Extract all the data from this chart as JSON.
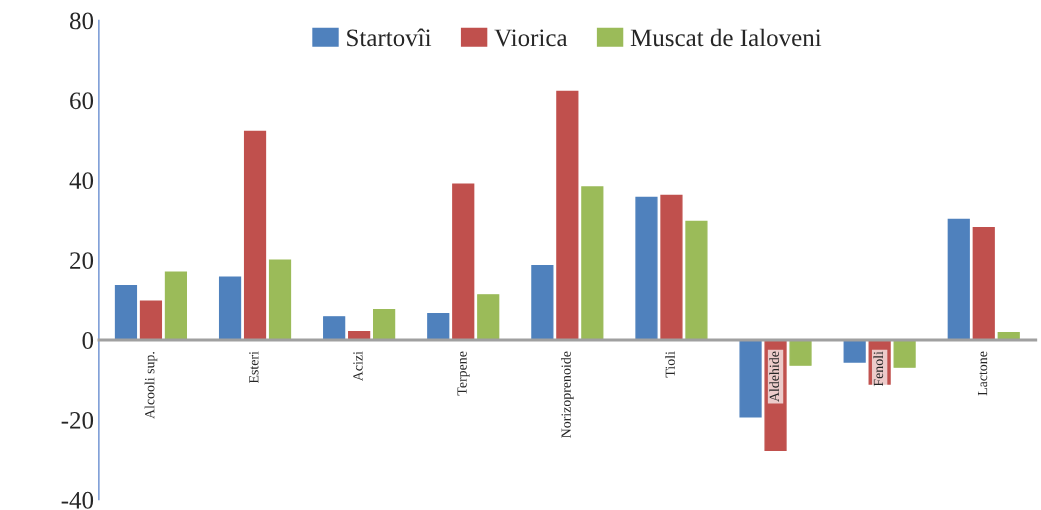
{
  "chart_data": {
    "type": "bar",
    "categories": [
      "Alcooli sup.",
      "Esteri",
      "Acizi",
      "Terpene",
      "Norizoprenoide",
      "Tioli",
      "Aldehide",
      "Fenoli",
      "Lactone"
    ],
    "series": [
      {
        "name": "Startovîi",
        "color": "#4f81bd",
        "values": [
          13.6,
          15.7,
          5.8,
          6.6,
          18.6,
          35.7,
          -19.2,
          -5.5,
          30.2
        ]
      },
      {
        "name": "Viorica",
        "color": "#c0504d",
        "values": [
          9.7,
          52.2,
          2.1,
          39,
          62.2,
          36.2,
          -27.6,
          -11,
          28.1
        ]
      },
      {
        "name": "Muscat de Ialoveni",
        "color": "#9bbb59",
        "values": [
          17,
          20,
          7.6,
          11.3,
          38.3,
          29.7,
          -6.3,
          -6.8,
          1.8
        ]
      }
    ],
    "ylim": [
      -40,
      80
    ],
    "yticks": [
      -40,
      -20,
      0,
      20,
      40,
      60,
      80
    ],
    "grid": false,
    "legend": "top"
  }
}
